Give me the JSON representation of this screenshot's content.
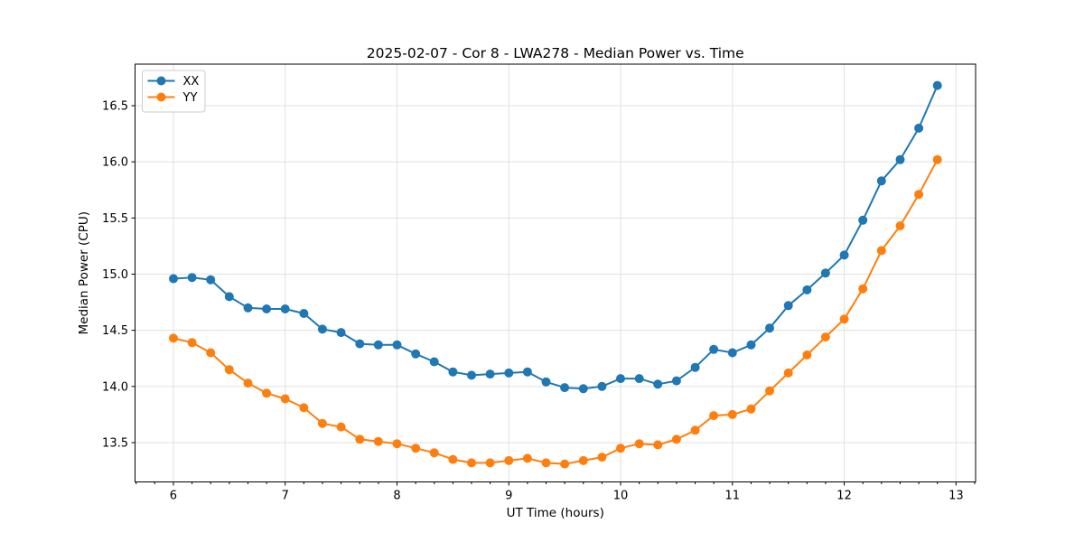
{
  "chart_data": {
    "type": "line",
    "title": "2025-02-07 - Cor 8 - LWA278 - Median Power vs. Time",
    "xlabel": "UT Time (hours)",
    "ylabel": "Median Power (CPU)",
    "xlim": [
      5.657,
      13.175
    ],
    "ylim": [
      13.15,
      16.87
    ],
    "xticks": [
      6,
      7,
      8,
      9,
      10,
      11,
      12,
      13
    ],
    "yticks": [
      13.5,
      14.0,
      14.5,
      15.0,
      15.5,
      16.0,
      16.5
    ],
    "x_minor_tick_step_hours": 0.1667,
    "grid": true,
    "legend": {
      "position": "upper-left",
      "entries": [
        "XX",
        "YY"
      ]
    },
    "x": [
      6.0,
      6.167,
      6.333,
      6.5,
      6.667,
      6.833,
      7.0,
      7.167,
      7.333,
      7.5,
      7.667,
      7.833,
      8.0,
      8.167,
      8.333,
      8.5,
      8.667,
      8.833,
      9.0,
      9.167,
      9.333,
      9.5,
      9.667,
      9.833,
      10.0,
      10.167,
      10.333,
      10.5,
      10.667,
      10.833,
      11.0,
      11.167,
      11.333,
      11.5,
      11.667,
      11.833,
      12.0,
      12.167,
      12.333,
      12.5,
      12.667,
      12.833
    ],
    "series": [
      {
        "name": "XX",
        "color": "#1f77b4",
        "values": [
          14.96,
          14.97,
          14.95,
          14.8,
          14.7,
          14.69,
          14.69,
          14.65,
          14.51,
          14.48,
          14.38,
          14.37,
          14.37,
          14.29,
          14.22,
          14.13,
          14.1,
          14.11,
          14.12,
          14.13,
          14.04,
          13.99,
          13.98,
          14.0,
          14.07,
          14.07,
          14.02,
          14.05,
          14.17,
          14.33,
          14.3,
          14.37,
          14.52,
          14.72,
          14.86,
          15.01,
          15.17,
          15.48,
          15.83,
          16.02,
          16.3,
          16.68
        ]
      },
      {
        "name": "YY",
        "color": "#ff7f0e",
        "values": [
          14.43,
          14.39,
          14.3,
          14.15,
          14.03,
          13.94,
          13.89,
          13.81,
          13.67,
          13.64,
          13.53,
          13.51,
          13.49,
          13.45,
          13.41,
          13.35,
          13.32,
          13.32,
          13.34,
          13.36,
          13.32,
          13.31,
          13.34,
          13.37,
          13.45,
          13.49,
          13.48,
          13.53,
          13.61,
          13.74,
          13.75,
          13.8,
          13.96,
          14.12,
          14.28,
          14.44,
          14.6,
          14.87,
          15.21,
          15.43,
          15.71,
          16.02
        ]
      }
    ]
  }
}
